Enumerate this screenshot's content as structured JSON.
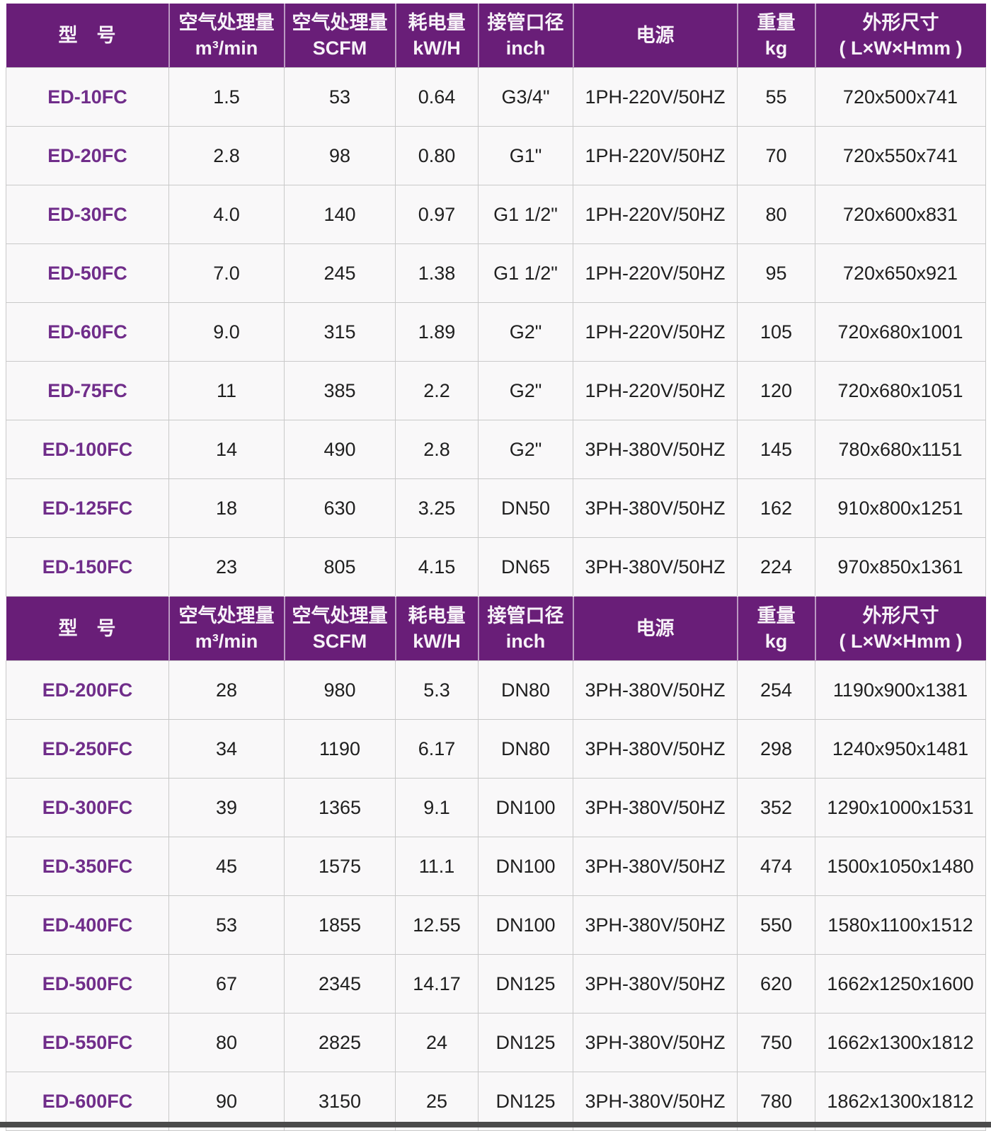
{
  "table": {
    "columns": [
      {
        "zh": "型　号",
        "en": ""
      },
      {
        "zh": "空气处理量",
        "en": "m³/min"
      },
      {
        "zh": "空气处理量",
        "en": "SCFM"
      },
      {
        "zh": "耗电量",
        "en": "kW/H"
      },
      {
        "zh": "接管口径",
        "en": "inch"
      },
      {
        "zh": "电源",
        "en": ""
      },
      {
        "zh": "重量",
        "en": "kg"
      },
      {
        "zh": "外形尺寸",
        "en": "( L×W×Hmm )"
      }
    ],
    "sections": [
      {
        "rows": [
          [
            "ED-10FC",
            "1.5",
            "53",
            "0.64",
            "G3/4\"",
            "1PH-220V/50HZ",
            "55",
            "720x500x741"
          ],
          [
            "ED-20FC",
            "2.8",
            "98",
            "0.80",
            "G1\"",
            "1PH-220V/50HZ",
            "70",
            "720x550x741"
          ],
          [
            "ED-30FC",
            "4.0",
            "140",
            "0.97",
            "G1 1/2\"",
            "1PH-220V/50HZ",
            "80",
            "720x600x831"
          ],
          [
            "ED-50FC",
            "7.0",
            "245",
            "1.38",
            "G1 1/2\"",
            "1PH-220V/50HZ",
            "95",
            "720x650x921"
          ],
          [
            "ED-60FC",
            "9.0",
            "315",
            "1.89",
            "G2\"",
            "1PH-220V/50HZ",
            "105",
            "720x680x1001"
          ],
          [
            "ED-75FC",
            "11",
            "385",
            "2.2",
            "G2\"",
            "1PH-220V/50HZ",
            "120",
            "720x680x1051"
          ],
          [
            "ED-100FC",
            "14",
            "490",
            "2.8",
            "G2\"",
            "3PH-380V/50HZ",
            "145",
            "780x680x1151"
          ],
          [
            "ED-125FC",
            "18",
            "630",
            "3.25",
            "DN50",
            "3PH-380V/50HZ",
            "162",
            "910x800x1251"
          ],
          [
            "ED-150FC",
            "23",
            "805",
            "4.15",
            "DN65",
            "3PH-380V/50HZ",
            "224",
            "970x850x1361"
          ]
        ]
      },
      {
        "rows": [
          [
            "ED-200FC",
            "28",
            "980",
            "5.3",
            "DN80",
            "3PH-380V/50HZ",
            "254",
            "1190x900x1381"
          ],
          [
            "ED-250FC",
            "34",
            "1190",
            "6.17",
            "DN80",
            "3PH-380V/50HZ",
            "298",
            "1240x950x1481"
          ],
          [
            "ED-300FC",
            "39",
            "1365",
            "9.1",
            "DN100",
            "3PH-380V/50HZ",
            "352",
            "1290x1000x1531"
          ],
          [
            "ED-350FC",
            "45",
            "1575",
            "11.1",
            "DN100",
            "3PH-380V/50HZ",
            "474",
            "1500x1050x1480"
          ],
          [
            "ED-400FC",
            "53",
            "1855",
            "12.55",
            "DN100",
            "3PH-380V/50HZ",
            "550",
            "1580x1100x1512"
          ],
          [
            "ED-500FC",
            "67",
            "2345",
            "14.17",
            "DN125",
            "3PH-380V/50HZ",
            "620",
            "1662x1250x1600"
          ],
          [
            "ED-550FC",
            "80",
            "2825",
            "24",
            "DN125",
            "3PH-380V/50HZ",
            "750",
            "1662x1300x1812"
          ],
          [
            "ED-600FC",
            "90",
            "3150",
            "25",
            "DN125",
            "3PH-380V/50HZ",
            "780",
            "1862x1300x1812"
          ]
        ]
      }
    ]
  },
  "colors": {
    "header_bg": "#691E78",
    "header_text": "#F7F2F8",
    "model_text": "#702D8A",
    "cell_text": "#1F1F1F",
    "grid_line": "#C9C9C9",
    "row_bg": "#F9F8F9",
    "bottom_bar": "#4B4B4B"
  }
}
